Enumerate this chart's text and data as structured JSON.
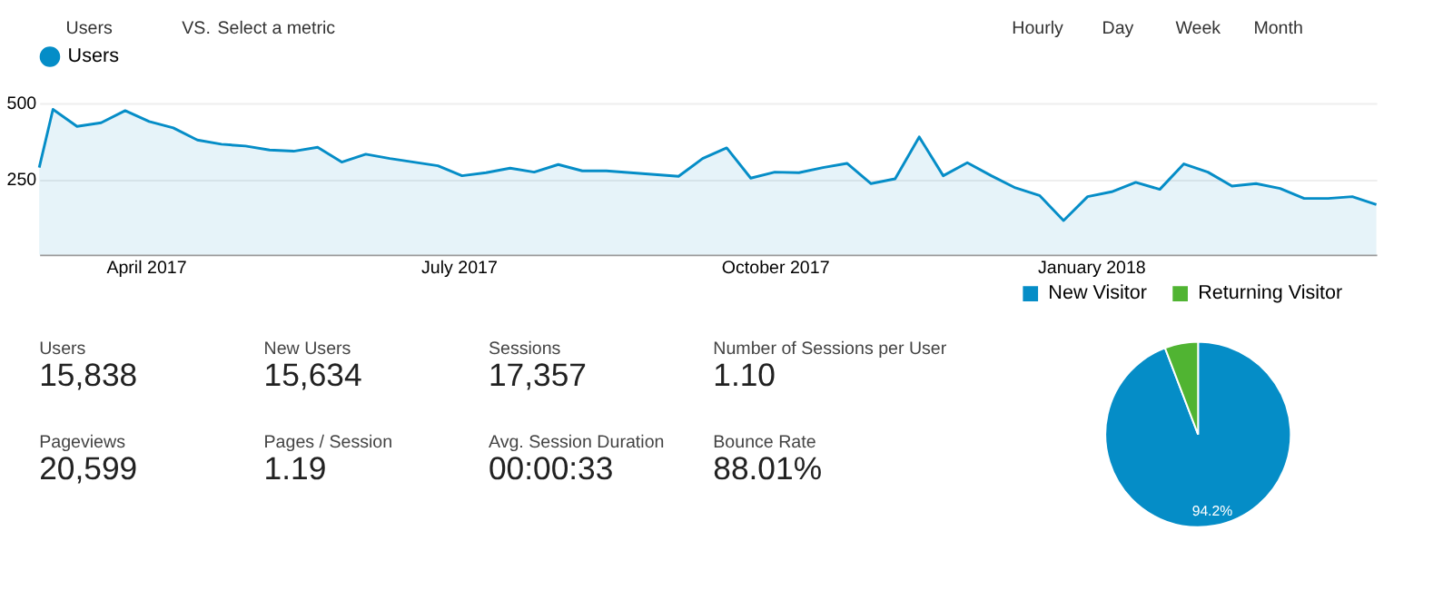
{
  "chart_data": [
    {
      "type": "other",
      "annotations": [
        "Users",
        "VS.",
        "Select a metric",
        "Hourly",
        "Day",
        "Week",
        "Month"
      ]
    },
    {
      "type": "area",
      "legend": "top left",
      "grid": "y",
      "ylim": [
        0,
        500
      ],
      "yticks": [
        250,
        500
      ],
      "xlim": [
        "2017-03-01",
        "2018-03-25"
      ],
      "xticks": [
        {
          "value": "2017-04-01",
          "label": "April 2017"
        },
        {
          "value": "2017-07-01",
          "label": "July 2017"
        },
        {
          "value": "2017-10-01",
          "label": "October 2017"
        },
        {
          "value": "2018-01-01",
          "label": "January 2018"
        }
      ],
      "x": [
        "2017-03-01",
        "2017-03-05",
        "2017-03-12",
        "2017-03-19",
        "2017-03-26",
        "2017-04-02",
        "2017-04-09",
        "2017-04-16",
        "2017-04-23",
        "2017-04-30",
        "2017-05-07",
        "2017-05-14",
        "2017-05-21",
        "2017-05-28",
        "2017-06-04",
        "2017-06-11",
        "2017-06-18",
        "2017-06-25",
        "2017-07-02",
        "2017-07-09",
        "2017-07-16",
        "2017-07-23",
        "2017-07-30",
        "2017-08-06",
        "2017-08-13",
        "2017-08-20",
        "2017-08-27",
        "2017-09-03",
        "2017-09-10",
        "2017-09-17",
        "2017-09-24",
        "2017-10-01",
        "2017-10-08",
        "2017-10-15",
        "2017-10-22",
        "2017-10-29",
        "2017-11-05",
        "2017-11-12",
        "2017-11-19",
        "2017-11-26",
        "2017-12-03",
        "2017-12-10",
        "2017-12-17",
        "2017-12-24",
        "2017-12-31",
        "2018-01-07",
        "2018-01-14",
        "2018-01-21",
        "2018-01-28",
        "2018-02-04",
        "2018-02-11",
        "2018-02-18",
        "2018-02-25",
        "2018-03-04",
        "2018-03-11",
        "2018-03-18",
        "2018-03-25"
      ],
      "series": [
        {
          "name": "Users",
          "color": "#058dc7",
          "values": [
            287,
            479,
            423,
            435,
            475,
            439,
            418,
            378,
            364,
            358,
            345,
            341,
            354,
            305,
            331,
            317,
            305,
            293,
            260,
            270,
            285,
            272,
            297,
            276,
            276,
            270,
            264,
            258,
            317,
            352,
            252,
            272,
            270,
            287,
            301,
            234,
            250,
            388,
            260,
            303,
            260,
            220,
            195,
            112,
            191,
            207,
            238,
            215,
            299,
            272,
            226,
            234,
            218,
            185,
            185,
            191,
            165
          ]
        }
      ]
    },
    {
      "type": "other",
      "categories": [
        "Users",
        "New Users",
        "Sessions",
        "Number of Sessions per User",
        "Pageviews",
        "Pages / Session",
        "Avg. Session Duration",
        "Bounce Rate"
      ],
      "value_labels": [
        "15,838",
        "15,634",
        "17,357",
        "1.10",
        "20,599",
        "1.19",
        "00:00:33",
        "88.01%"
      ]
    },
    {
      "type": "pie",
      "legend": "top",
      "categories": [
        "New Visitor",
        "Returning Visitor"
      ],
      "values": [
        94.2,
        5.8
      ],
      "colors": [
        "#058dc7",
        "#50b432"
      ],
      "value_labels": [
        "94.2%",
        null
      ]
    }
  ]
}
